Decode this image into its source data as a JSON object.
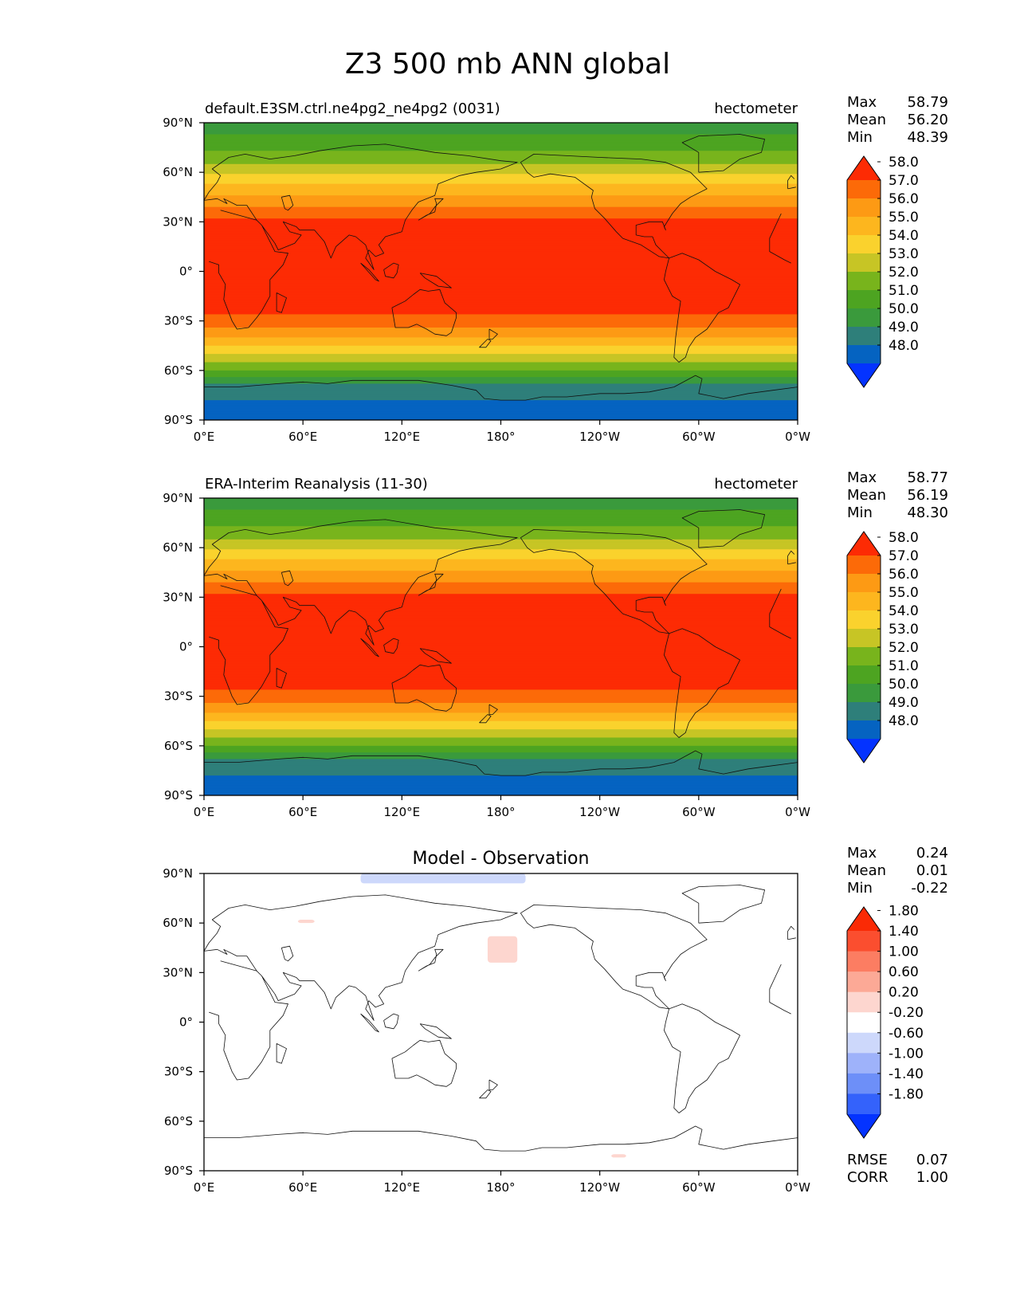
{
  "figure": {
    "title": "Z3 500 mb ANN global"
  },
  "axes": {
    "lat_ticks": [
      "90°N",
      "60°N",
      "30°N",
      "0°",
      "30°S",
      "60°S",
      "90°S"
    ],
    "lon_ticks": [
      "0°E",
      "60°E",
      "120°E",
      "180°",
      "120°W",
      "60°W",
      "0°W"
    ]
  },
  "chart_data": [
    {
      "type": "heatmap",
      "title": "default.E3SM.ctrl.ne4pg2_ne4pg2 (0031)",
      "units": "hectometer",
      "stats": [
        {
          "label": "Max",
          "value": "58.79"
        },
        {
          "label": "Mean",
          "value": "56.20"
        },
        {
          "label": "Min",
          "value": "48.39"
        }
      ],
      "colorbar": {
        "levels": [
          48.0,
          49.0,
          50.0,
          51.0,
          52.0,
          53.0,
          54.0,
          55.0,
          56.0,
          57.0,
          58.0
        ],
        "tick_labels": [
          "48.0",
          "49.0",
          "50.0",
          "51.0",
          "52.0",
          "53.0",
          "54.0",
          "55.0",
          "56.0",
          "57.0",
          "58.0"
        ],
        "colors": [
          "#0433ff",
          "#0563c1",
          "#2e7f7a",
          "#3a9a3c",
          "#4da421",
          "#78b41c",
          "#c7c525",
          "#fad22d",
          "#fdb61e",
          "#fd9a14",
          "#fc6a08",
          "#fd2b04"
        ]
      },
      "zonal_profile": {
        "lat": [
          90,
          80,
          70,
          60,
          50,
          40,
          30,
          20,
          10,
          0,
          -10,
          -20,
          -30,
          -40,
          -50,
          -60,
          -70,
          -80,
          -90
        ],
        "z3": [
          50.5,
          51.2,
          52.3,
          53.8,
          55.4,
          56.9,
          58.2,
          58.6,
          58.7,
          58.7,
          58.7,
          58.5,
          57.6,
          56.0,
          54.0,
          51.9,
          49.6,
          48.8,
          48.7
        ]
      }
    },
    {
      "type": "heatmap",
      "title": "ERA-Interim Reanalysis (11-30)",
      "units": "hectometer",
      "stats": [
        {
          "label": "Max",
          "value": "58.77"
        },
        {
          "label": "Mean",
          "value": "56.19"
        },
        {
          "label": "Min",
          "value": "48.30"
        }
      ],
      "colorbar": {
        "levels": [
          48.0,
          49.0,
          50.0,
          51.0,
          52.0,
          53.0,
          54.0,
          55.0,
          56.0,
          57.0,
          58.0
        ],
        "tick_labels": [
          "48.0",
          "49.0",
          "50.0",
          "51.0",
          "52.0",
          "53.0",
          "54.0",
          "55.0",
          "56.0",
          "57.0",
          "58.0"
        ],
        "colors": [
          "#0433ff",
          "#0563c1",
          "#2e7f7a",
          "#3a9a3c",
          "#4da421",
          "#78b41c",
          "#c7c525",
          "#fad22d",
          "#fdb61e",
          "#fd9a14",
          "#fc6a08",
          "#fd2b04"
        ]
      },
      "zonal_profile": {
        "lat": [
          90,
          80,
          70,
          60,
          50,
          40,
          30,
          20,
          10,
          0,
          -10,
          -20,
          -30,
          -40,
          -50,
          -60,
          -70,
          -80,
          -90
        ],
        "z3": [
          50.6,
          51.2,
          52.3,
          53.8,
          55.4,
          56.9,
          58.2,
          58.6,
          58.7,
          58.7,
          58.7,
          58.5,
          57.6,
          56.0,
          54.0,
          51.9,
          49.6,
          48.8,
          48.6
        ]
      }
    },
    {
      "type": "heatmap",
      "title": "Model - Observation",
      "units": "",
      "stats": [
        {
          "label": "Max",
          "value": "0.24"
        },
        {
          "label": "Mean",
          "value": "0.01"
        },
        {
          "label": "Min",
          "value": "-0.22"
        }
      ],
      "metrics": [
        {
          "label": "RMSE",
          "value": "0.07"
        },
        {
          "label": "CORR",
          "value": "1.00"
        }
      ],
      "colorbar": {
        "levels": [
          -1.8,
          -1.4,
          -1.0,
          -0.6,
          -0.2,
          0.2,
          0.6,
          1.0,
          1.4,
          1.8
        ],
        "tick_labels": [
          "-1.80",
          "-1.40",
          "-1.00",
          "-0.60",
          "-0.20",
          "0.20",
          "0.60",
          "1.00",
          "1.40",
          "1.80"
        ],
        "colors": [
          "#0433ff",
          "#3462fb",
          "#6d8ff8",
          "#9eb2fa",
          "#cdd8fb",
          "#ffffff",
          "#fdd6cf",
          "#fca996",
          "#fc7d62",
          "#fb4e2f",
          "#fa2a05"
        ]
      },
      "anomaly_patches": [
        {
          "lon": [
            95,
            195
          ],
          "lat": [
            84,
            90
          ],
          "value": -0.21
        },
        {
          "lon": [
            57,
            67
          ],
          "lat": [
            60,
            62
          ],
          "value": 0.21
        },
        {
          "lon": [
            172,
            190
          ],
          "lat": [
            36,
            52
          ],
          "value": 0.22
        },
        {
          "lon": [
            247,
            256
          ],
          "lat": [
            -82,
            -80
          ],
          "value": 0.21
        }
      ]
    }
  ]
}
